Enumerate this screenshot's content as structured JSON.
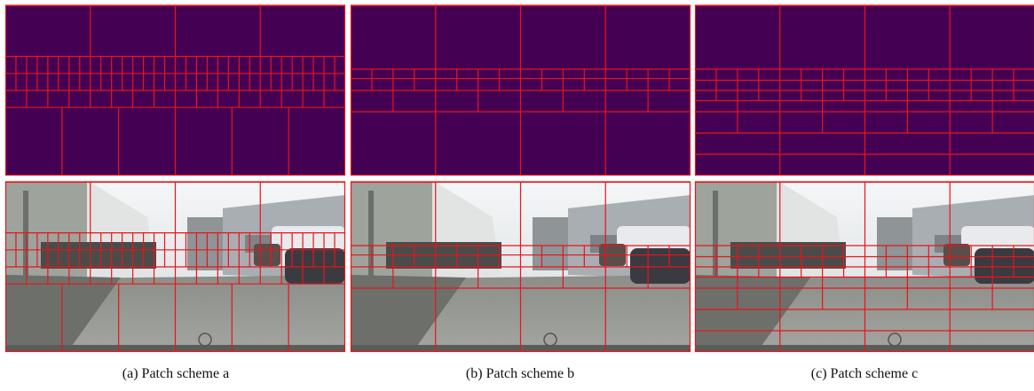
{
  "panels": [
    {
      "caption": "(a) Patch scheme a"
    },
    {
      "caption": "(b) Patch scheme b"
    },
    {
      "caption": "(c) Patch scheme c"
    }
  ]
}
